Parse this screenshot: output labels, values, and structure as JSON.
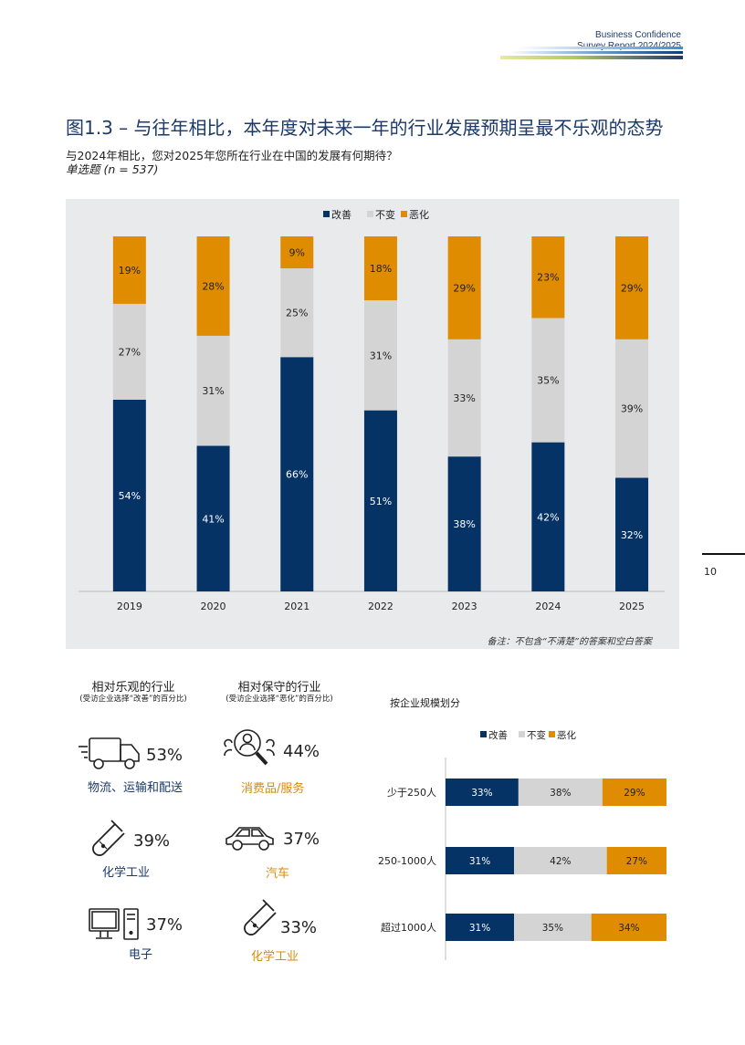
{
  "header": {
    "line1": "Business Confidence",
    "line2": "Survey Report  2024/2025"
  },
  "title": "图1.3 – 与往年相比，本年度对未来一年的行业发展预期呈最不乐观的态势",
  "subtitle": "与2024年相比，您对2025年您所在行业在中国的发展有何期待？",
  "question_type": "单选题 (n = 537)",
  "note": "备注：不包含“不清楚”的答案和空白答案",
  "page_number": "10",
  "colors": {
    "improve": "#063366",
    "same": "#d4d4d4",
    "worse": "#e08c00",
    "navy_text": "#1b3a6b",
    "orange_text": "#d98a0b"
  },
  "legend": {
    "improve": "改善",
    "same": "不变",
    "worse": "恶化"
  },
  "chart_data": [
    {
      "type": "bar",
      "stacked": true,
      "categories": [
        "2019",
        "2020",
        "2021",
        "2022",
        "2023",
        "2024",
        "2025"
      ],
      "series": [
        {
          "name": "改善",
          "values": [
            54,
            41,
            66,
            51,
            38,
            42,
            32
          ]
        },
        {
          "name": "不变",
          "values": [
            27,
            31,
            25,
            31,
            33,
            35,
            39
          ]
        },
        {
          "name": "恶化",
          "values": [
            19,
            28,
            9,
            18,
            29,
            23,
            29
          ]
        }
      ],
      "ylim": [
        0,
        100
      ],
      "legend_position": "top-center",
      "grid": false
    },
    {
      "type": "bar",
      "orientation": "horizontal",
      "stacked": true,
      "title": "按企业规模划分",
      "categories": [
        "少于250人",
        "250-1000人",
        "超过1000人"
      ],
      "series": [
        {
          "name": "改善",
          "values": [
            33,
            31,
            31
          ]
        },
        {
          "name": "不变",
          "values": [
            38,
            42,
            35
          ]
        },
        {
          "name": "恶化",
          "values": [
            29,
            27,
            34
          ]
        }
      ],
      "xlim": [
        0,
        100
      ],
      "legend_position": "top-center"
    }
  ],
  "optimistic": {
    "heading": "相对乐观的行业",
    "sub": "(受访企业选择“改善”的百分比)",
    "items": [
      {
        "icon": "truck-icon",
        "value": "53%",
        "label": "物流、运输和配送"
      },
      {
        "icon": "test-tube-icon",
        "value": "39%",
        "label": "化学工业"
      },
      {
        "icon": "computer-icon",
        "value": "37%",
        "label": "电子"
      }
    ]
  },
  "conservative": {
    "heading": "相对保守的行业",
    "sub": "(受访企业选择“恶化”的百分比)",
    "items": [
      {
        "icon": "consumer-search-icon",
        "value": "44%",
        "label": "消费品/服务"
      },
      {
        "icon": "car-icon",
        "value": "37%",
        "label": "汽车"
      },
      {
        "icon": "test-tube-icon",
        "value": "33%",
        "label": "化学工业"
      }
    ]
  }
}
